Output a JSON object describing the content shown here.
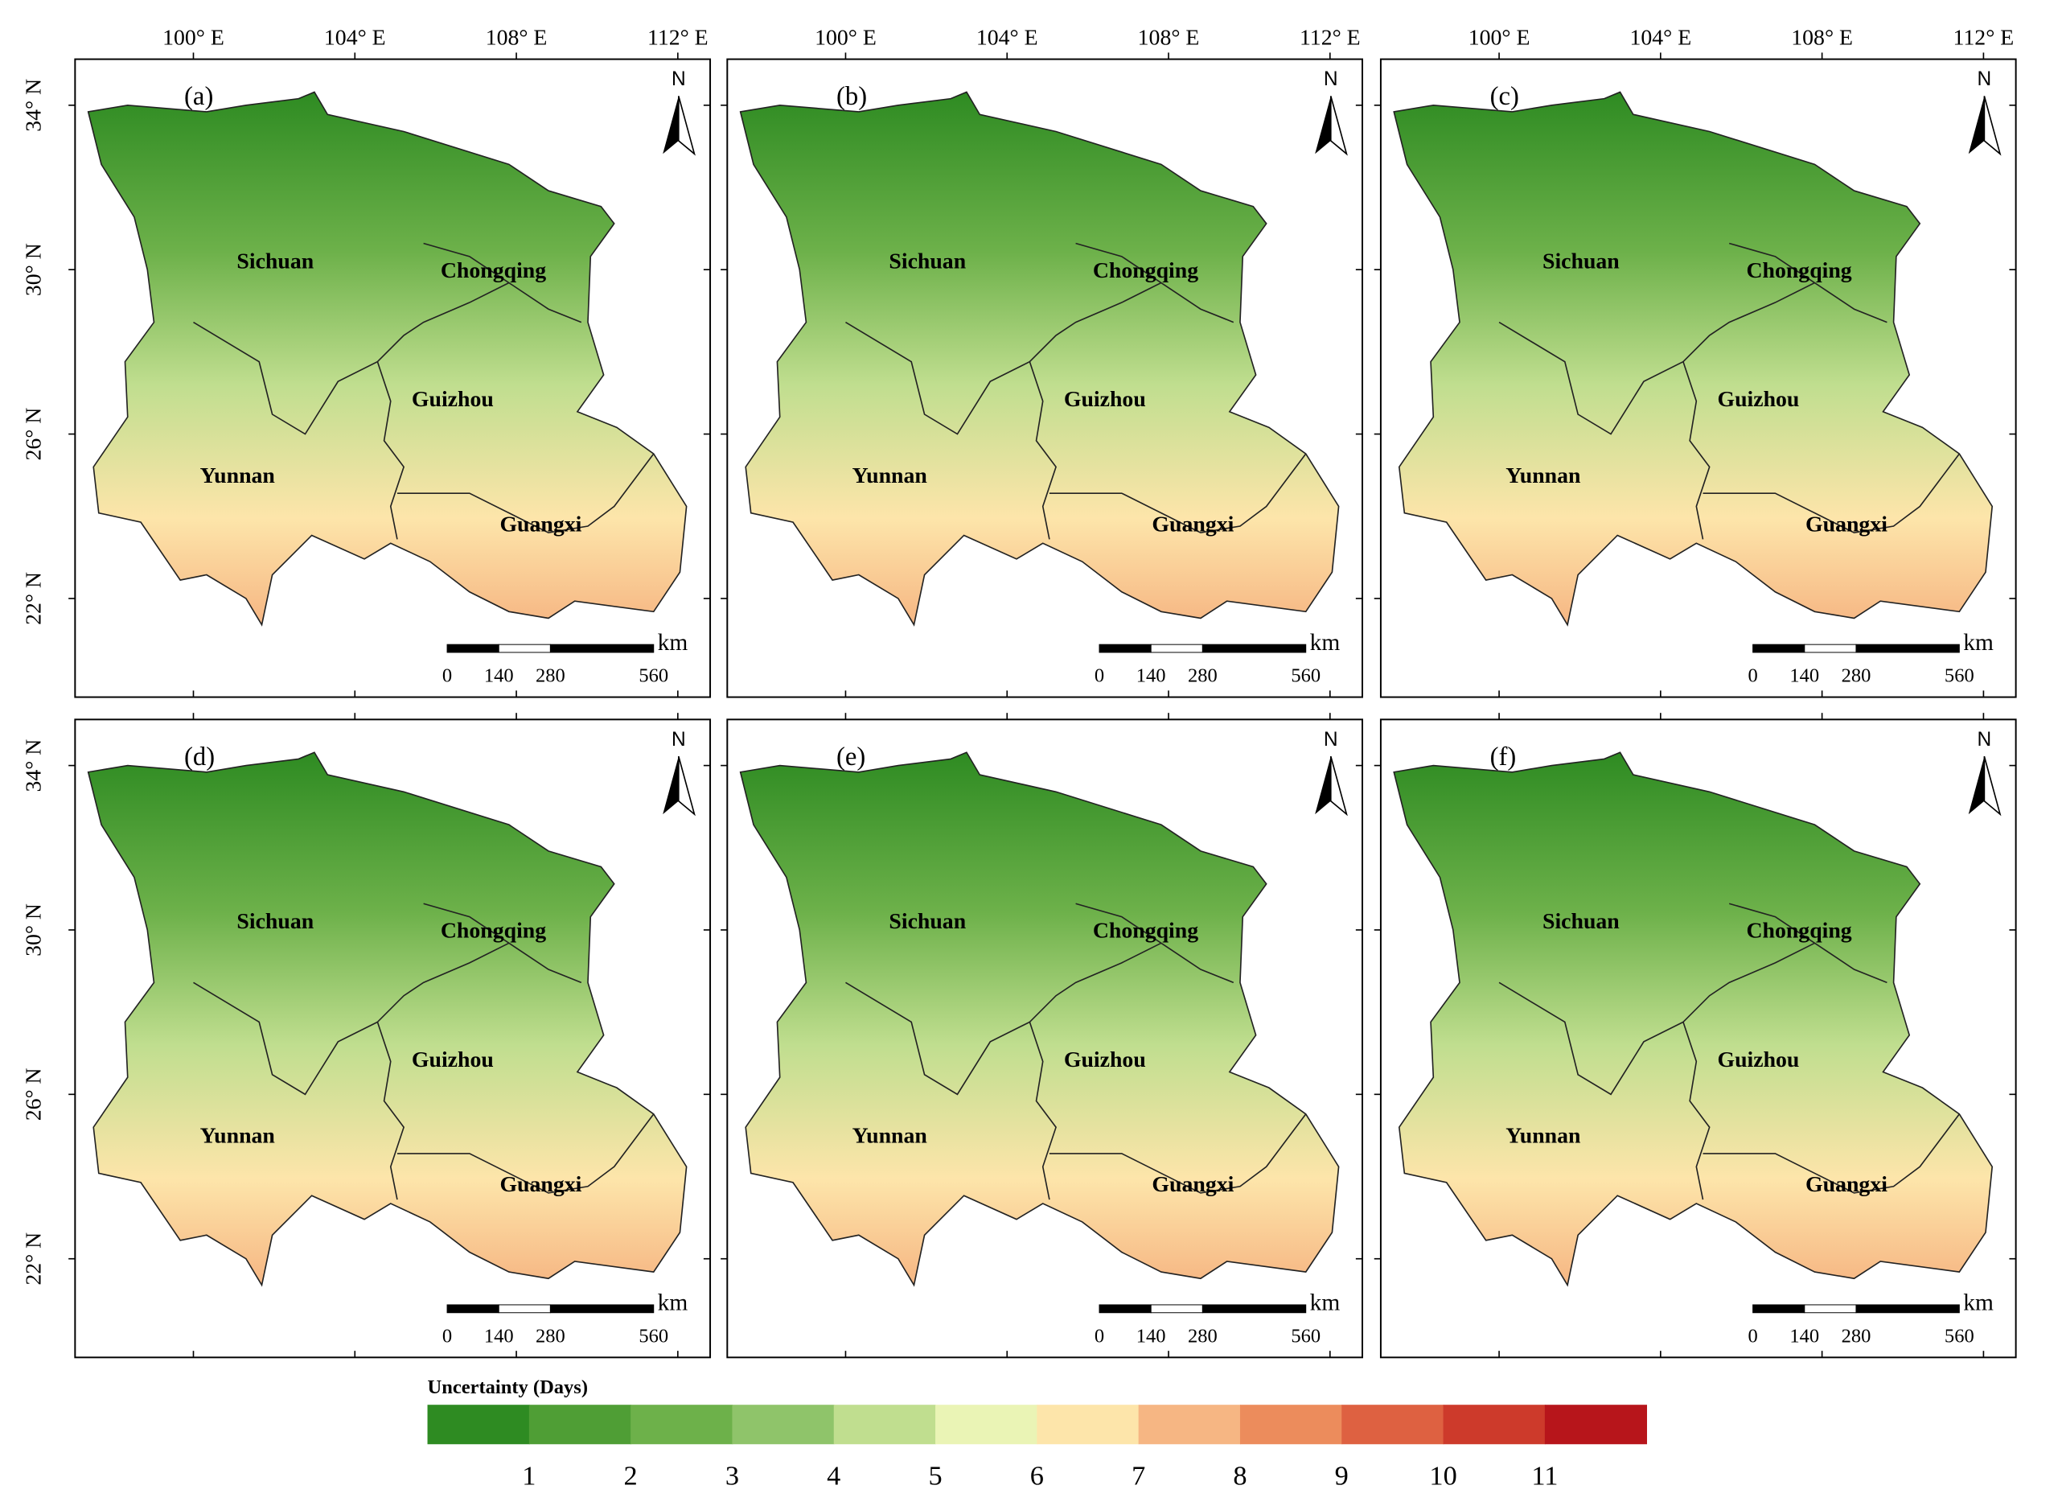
{
  "panels": [
    {
      "label": "(a)",
      "provinces": [
        "Sichuan",
        "Chongqing",
        "Guizhou",
        "Yunnan",
        "Guangxi"
      ]
    },
    {
      "label": "(b)",
      "provinces": [
        "Sichuan",
        "Chongqing",
        "Guizhou",
        "Yunnan",
        "Guangxi"
      ]
    },
    {
      "label": "(c)",
      "provinces": [
        "Sichuan",
        "Chongqing",
        "Guizhou",
        "Yunnan",
        "Guangxi"
      ]
    },
    {
      "label": "(d)",
      "provinces": [
        "Sichuan",
        "Chongqing",
        "Guizhou",
        "Yunnan",
        "Guangxi"
      ]
    },
    {
      "label": "(e)",
      "provinces": [
        "Sichuan",
        "Chongqing",
        "Guizhou",
        "Yunnan",
        "Guangxi"
      ]
    },
    {
      "label": "(f)",
      "provinces": [
        "Sichuan",
        "Chongqing",
        "Guizhou",
        "Yunnan",
        "Guangxi"
      ]
    }
  ],
  "lon_ticks": [
    {
      "value": 100,
      "label": "100° E"
    },
    {
      "value": 104,
      "label": "104° E"
    },
    {
      "value": 108,
      "label": "108° E"
    },
    {
      "value": 112,
      "label": "112° E"
    }
  ],
  "lat_ticks": [
    {
      "value": 34,
      "label": "34° N"
    },
    {
      "value": 30,
      "label": "30° N"
    },
    {
      "value": 26,
      "label": "26° N"
    },
    {
      "value": 22,
      "label": "22° N"
    }
  ],
  "north": "N",
  "scale_bar": {
    "ticks": [
      0,
      140,
      280,
      560
    ],
    "unit": "km"
  },
  "legend": {
    "title": "Uncertainty (Days)",
    "ticks": [
      1,
      2,
      3,
      4,
      5,
      6,
      7,
      8,
      9,
      10,
      11
    ],
    "colors": [
      "#2e8b22",
      "#4f9e35",
      "#6db14a",
      "#8fc46a",
      "#c0de8f",
      "#eaf4b5",
      "#fde5aa",
      "#f6b683",
      "#ec8c5c",
      "#de6141",
      "#cd3a2b",
      "#b7151b"
    ]
  }
}
